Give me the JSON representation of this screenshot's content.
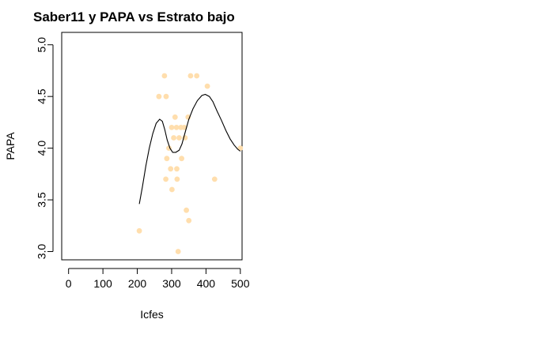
{
  "chart_data": {
    "type": "scatter",
    "title": "Saber11 y PAPA vs Estrato bajo",
    "xlabel": "Icfes",
    "ylabel": "PAPA",
    "xlim": [
      -20,
      505
    ],
    "ylim": [
      2.92,
      5.12
    ],
    "x_ticks": [
      0,
      100,
      200,
      300,
      400,
      500
    ],
    "x_tick_labels": [
      "0",
      "100",
      "200",
      "300",
      "400",
      "500"
    ],
    "y_ticks": [
      3.0,
      3.5,
      4.0,
      4.5,
      5.0
    ],
    "y_tick_labels": [
      "3.0",
      "3.5",
      "4.0",
      "4.5",
      "5.0"
    ],
    "grid": false,
    "point_color": "#FFDEAD",
    "line_color": "#000000",
    "points": [
      {
        "x": 206,
        "y": 3.2
      },
      {
        "x": 263,
        "y": 4.5
      },
      {
        "x": 279,
        "y": 4.7
      },
      {
        "x": 283,
        "y": 3.7
      },
      {
        "x": 284,
        "y": 4.5
      },
      {
        "x": 286,
        "y": 3.9
      },
      {
        "x": 292,
        "y": 4.0
      },
      {
        "x": 297,
        "y": 3.8
      },
      {
        "x": 300,
        "y": 4.2
      },
      {
        "x": 301,
        "y": 3.6
      },
      {
        "x": 306,
        "y": 4.1
      },
      {
        "x": 310,
        "y": 4.3
      },
      {
        "x": 314,
        "y": 4.2
      },
      {
        "x": 315,
        "y": 3.8
      },
      {
        "x": 316,
        "y": 3.7
      },
      {
        "x": 319,
        "y": 3.0
      },
      {
        "x": 322,
        "y": 4.1
      },
      {
        "x": 327,
        "y": 4.2
      },
      {
        "x": 329,
        "y": 3.9
      },
      {
        "x": 337,
        "y": 4.2
      },
      {
        "x": 339,
        "y": 4.1
      },
      {
        "x": 343,
        "y": 3.4
      },
      {
        "x": 348,
        "y": 4.3
      },
      {
        "x": 350,
        "y": 3.3
      },
      {
        "x": 355,
        "y": 4.7
      },
      {
        "x": 373,
        "y": 4.7
      },
      {
        "x": 404,
        "y": 4.6
      },
      {
        "x": 425,
        "y": 3.7
      },
      {
        "x": 500,
        "y": 4.0
      }
    ],
    "smooth_line": [
      {
        "x": 206,
        "y": 3.46
      },
      {
        "x": 215,
        "y": 3.63
      },
      {
        "x": 225,
        "y": 3.83
      },
      {
        "x": 235,
        "y": 4.0
      },
      {
        "x": 245,
        "y": 4.14
      },
      {
        "x": 255,
        "y": 4.24
      },
      {
        "x": 265,
        "y": 4.28
      },
      {
        "x": 273,
        "y": 4.26
      },
      {
        "x": 280,
        "y": 4.18
      },
      {
        "x": 287,
        "y": 4.08
      },
      {
        "x": 295,
        "y": 4.0
      },
      {
        "x": 303,
        "y": 3.96
      },
      {
        "x": 312,
        "y": 3.96
      },
      {
        "x": 322,
        "y": 3.98
      },
      {
        "x": 330,
        "y": 4.04
      },
      {
        "x": 340,
        "y": 4.16
      },
      {
        "x": 350,
        "y": 4.28
      },
      {
        "x": 362,
        "y": 4.38
      },
      {
        "x": 375,
        "y": 4.46
      },
      {
        "x": 388,
        "y": 4.51
      },
      {
        "x": 398,
        "y": 4.52
      },
      {
        "x": 410,
        "y": 4.5
      },
      {
        "x": 420,
        "y": 4.45
      },
      {
        "x": 432,
        "y": 4.36
      },
      {
        "x": 445,
        "y": 4.27
      },
      {
        "x": 458,
        "y": 4.17
      },
      {
        "x": 470,
        "y": 4.09
      },
      {
        "x": 482,
        "y": 4.03
      },
      {
        "x": 492,
        "y": 3.99
      },
      {
        "x": 500,
        "y": 3.97
      }
    ]
  }
}
